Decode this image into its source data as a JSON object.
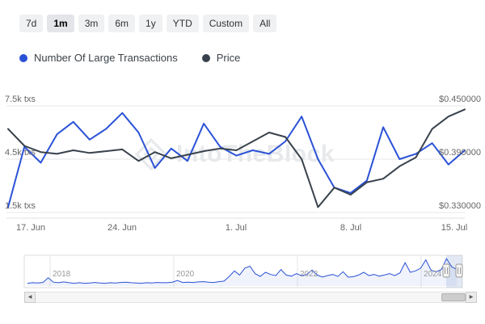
{
  "range_selector": {
    "buttons": [
      {
        "label": "7d",
        "selected": false
      },
      {
        "label": "1m",
        "selected": true
      },
      {
        "label": "3m",
        "selected": false
      },
      {
        "label": "6m",
        "selected": false
      },
      {
        "label": "1y",
        "selected": false
      },
      {
        "label": "YTD",
        "selected": false
      },
      {
        "label": "Custom",
        "selected": false
      },
      {
        "label": "All",
        "selected": false
      }
    ]
  },
  "legend": [
    {
      "label": "Number Of Large Transactions",
      "color": "#2b52d6"
    },
    {
      "label": "Price",
      "color": "#39424c"
    }
  ],
  "watermark": "IntoTheBlock",
  "chart_data": {
    "type": "line",
    "title": "",
    "x": [
      "17 Jun",
      "18 Jun",
      "19 Jun",
      "20 Jun",
      "21 Jun",
      "22 Jun",
      "23 Jun",
      "24 Jun",
      "25 Jun",
      "26 Jun",
      "27 Jun",
      "28 Jun",
      "29 Jun",
      "30 Jun",
      "1 Jul",
      "2 Jul",
      "3 Jul",
      "4 Jul",
      "5 Jul",
      "6 Jul",
      "7 Jul",
      "8 Jul",
      "9 Jul",
      "10 Jul",
      "11 Jul",
      "12 Jul",
      "13 Jul",
      "14 Jul",
      "15 Jul"
    ],
    "x_ticks": [
      "17. Jun",
      "24. Jun",
      "1. Jul",
      "8. Jul",
      "15. Jul"
    ],
    "series": [
      {
        "name": "Number Of Large Transactions",
        "axis": "left",
        "color": "#2b52d6",
        "unit": "k txs",
        "values": [
          1.8,
          5.2,
          4.3,
          5.9,
          6.6,
          5.6,
          6.2,
          7.1,
          6.0,
          4.0,
          5.1,
          4.4,
          6.5,
          5.2,
          4.7,
          5.0,
          4.8,
          5.5,
          6.9,
          4.5,
          2.9,
          2.6,
          3.3,
          6.3,
          4.5,
          4.8,
          5.4,
          4.2,
          5.0
        ]
      },
      {
        "name": "Price",
        "axis": "right",
        "color": "#39424c",
        "unit": "$",
        "values": [
          0.424,
          0.405,
          0.398,
          0.396,
          0.4,
          0.397,
          0.399,
          0.401,
          0.388,
          0.398,
          0.391,
          0.395,
          0.399,
          0.402,
          0.4,
          0.41,
          0.42,
          0.415,
          0.39,
          0.336,
          0.358,
          0.35,
          0.364,
          0.368,
          0.382,
          0.392,
          0.424,
          0.438,
          0.446
        ]
      }
    ],
    "left_axis": {
      "ticks": [
        "7.5k txs",
        "4.5k txs",
        "1.5k txs"
      ],
      "min": 1.5,
      "max": 7.5
    },
    "right_axis": {
      "ticks": [
        "$0.450000",
        "$0.390000",
        "$0.330000"
      ],
      "min": 0.33,
      "max": 0.45
    },
    "grid": true,
    "legend_position": "top"
  },
  "navigator": {
    "years": [
      "2018",
      "2020",
      "2022",
      "2024"
    ],
    "values": [
      0.1,
      0.12,
      0.11,
      0.13,
      0.3,
      0.14,
      0.12,
      0.15,
      0.12,
      0.1,
      0.12,
      0.1,
      0.11,
      0.13,
      0.11,
      0.1,
      0.12,
      0.11,
      0.13,
      0.14,
      0.12,
      0.11,
      0.1,
      0.12,
      0.11,
      0.13,
      0.12,
      0.12,
      0.14,
      0.2,
      0.13,
      0.14,
      0.13,
      0.15,
      0.16,
      0.14,
      0.13,
      0.16,
      0.18,
      0.35,
      0.55,
      0.4,
      0.65,
      0.72,
      0.45,
      0.35,
      0.5,
      0.42,
      0.38,
      0.6,
      0.4,
      0.36,
      0.45,
      0.38,
      0.42,
      0.58,
      0.4,
      0.33,
      0.38,
      0.42,
      0.35,
      0.52,
      0.32,
      0.34,
      0.4,
      0.5,
      0.38,
      0.42,
      0.36,
      0.4,
      0.45,
      0.38,
      0.48,
      0.85,
      0.5,
      0.55,
      0.65,
      0.95,
      0.58,
      0.52,
      0.6,
      1.0,
      0.7,
      0.6
    ]
  },
  "icons": {
    "left_arrow": "◀",
    "right_arrow": "▶"
  }
}
